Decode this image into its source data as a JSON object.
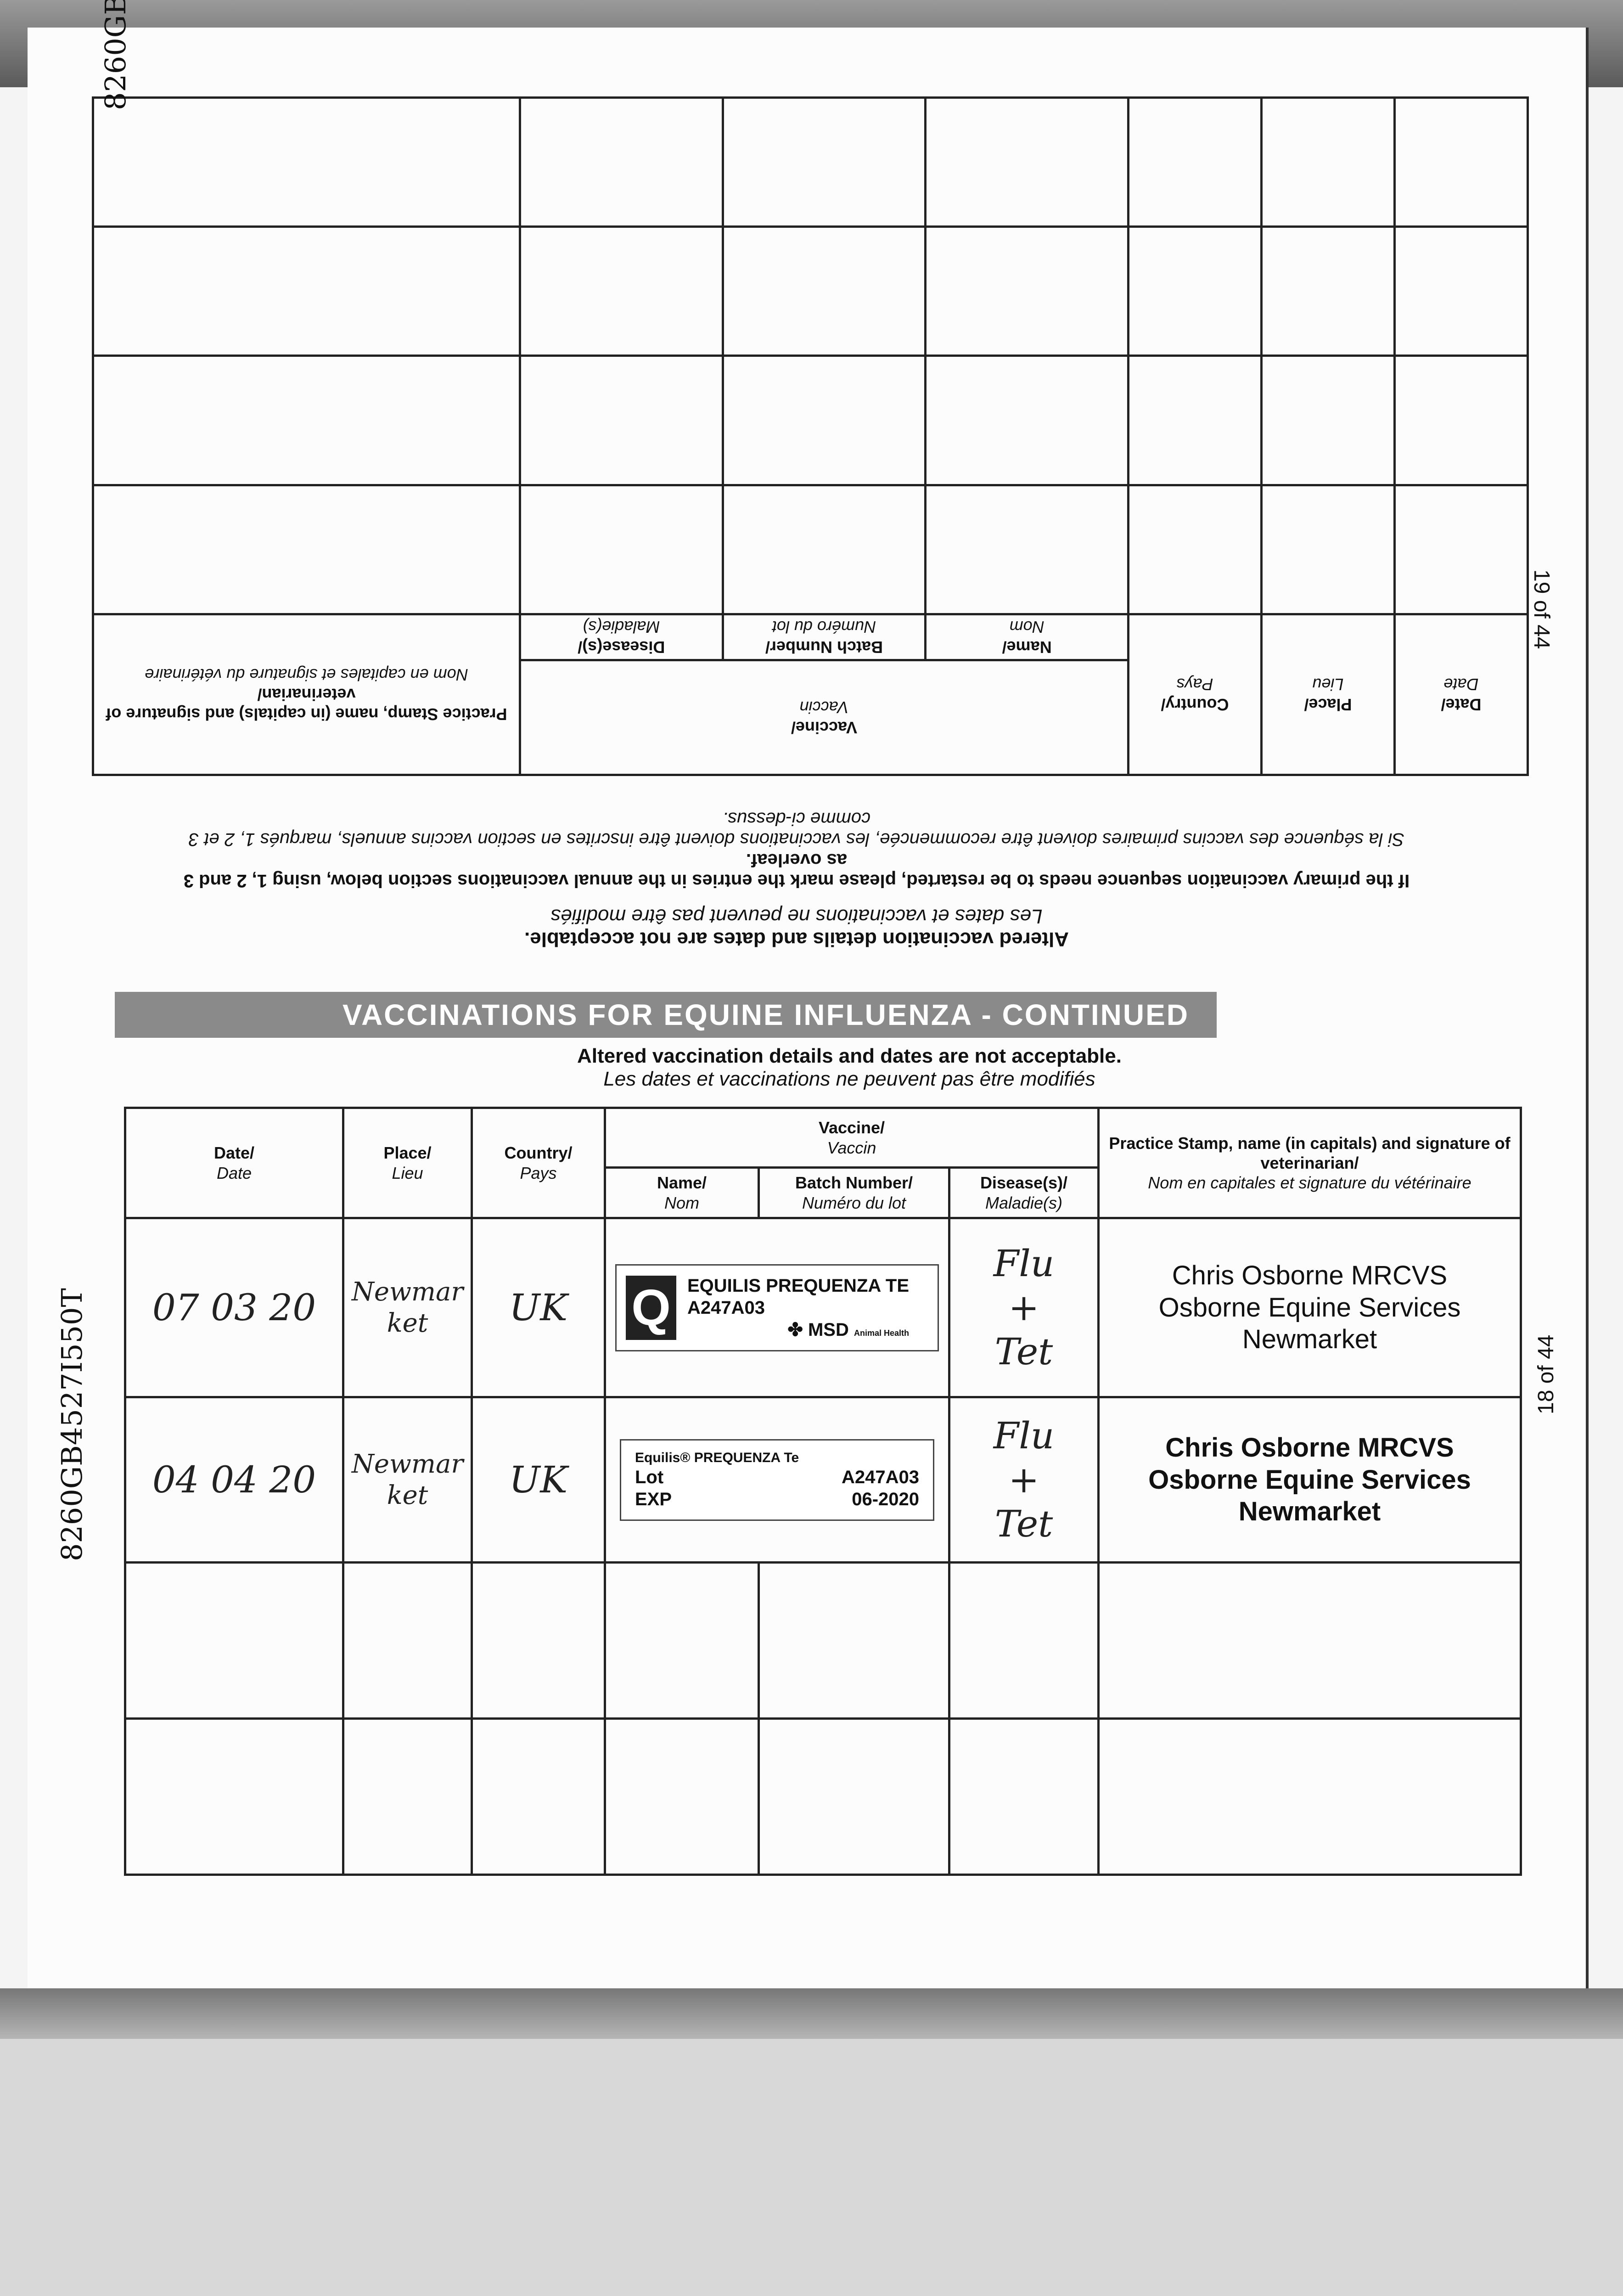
{
  "document_id": "8260GB4527I550T",
  "upper_page": {
    "page_number": "19 of 44",
    "headers": {
      "date": "Date/",
      "date_fr": "Date",
      "place": "Place/",
      "place_fr": "Lieu",
      "country": "Country/",
      "country_fr": "Pays",
      "vaccine": "Vaccine/",
      "vaccine_fr": "Vaccin",
      "name": "Name/",
      "name_fr": "Nom",
      "batch": "Batch Number/",
      "batch_fr": "Numéro du lot",
      "disease": "Disease(s)/",
      "disease_fr": "Maladie(s)",
      "practice": "Practice Stamp, name (in capitals) and signature of veterinarian/",
      "practice_fr": "Nom en capitales et signature du vétérinaire"
    },
    "notice_en": "Altered vaccination details and dates are not acceptable.",
    "notice_fr": "Les dates et vaccinations ne peuvent pas être modifiés",
    "restart_en": "If the primary vaccination sequence needs to be restarted, please mark the entries in the annual vaccinations section below, using 1, 2 and 3 as overleaf.",
    "restart_fr": "Si la séquence des vaccins primaires doivent être recommencée, les vaccinations doivent être inscrites en section vaccins annuels, marqués 1, 2 et 3 comme ci-dessus."
  },
  "lower_page": {
    "page_number": "18 of 44",
    "banner": "VACCINATIONS FOR EQUINE INFLUENZA - CONTINUED",
    "notice_en": "Altered vaccination details and dates are not acceptable.",
    "notice_fr": "Les dates et vaccinations ne peuvent pas être modifiés",
    "headers": {
      "date": "Date/",
      "date_fr": "Date",
      "place": "Place/",
      "place_fr": "Lieu",
      "country": "Country/",
      "country_fr": "Pays",
      "vaccine": "Vaccine/",
      "vaccine_fr": "Vaccin",
      "name": "Name/",
      "name_fr": "Nom",
      "batch": "Batch Number/",
      "batch_fr": "Numéro du lot",
      "disease": "Disease(s)/",
      "disease_fr": "Maladie(s)",
      "practice": "Practice Stamp, name (in capitals) and signature of veterinarian/",
      "practice_fr": "Nom en capitales et signature du vétérinaire"
    },
    "rows": [
      {
        "date": "07 03 20",
        "place": "Newmarket",
        "country": "UK",
        "label_name": "EQUILIS PREQUENZA TE",
        "label_batch": "A247A03",
        "label_brand": "MSD",
        "label_brand_sub": "Animal Health",
        "disease_1": "Flu",
        "disease_2": "+",
        "disease_3": "Tet",
        "stamp_1": "Chris Osborne MRCVS",
        "stamp_2": "Osborne Equine Services",
        "stamp_3": "Newmarket"
      },
      {
        "date": "04 04 20",
        "place": "Newmarket",
        "country": "UK",
        "label_name": "Equilis® PREQUENZA Te",
        "label_lot_label": "Lot",
        "label_exp_label": "EXP",
        "label_lot": "A247A03",
        "label_exp": "06-2020",
        "disease_1": "Flu",
        "disease_2": "+",
        "disease_3": "Tet",
        "stamp_1": "Chris Osborne MRCVS",
        "stamp_2": "Osborne Equine Services",
        "stamp_3": "Newmarket"
      }
    ]
  }
}
